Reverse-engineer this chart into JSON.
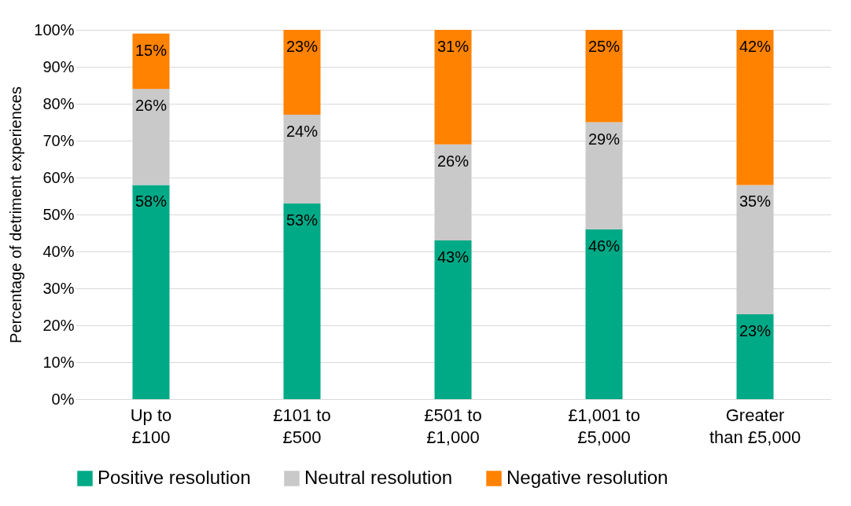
{
  "chart_data": {
    "type": "bar",
    "stacked": true,
    "ylabel": "Percentage of detriment experiences",
    "categories": [
      "Up to £100",
      "£101 to £500",
      "£501 to £1,000",
      "£1,001 to £5,000",
      "Greater than £5,000"
    ],
    "series": [
      {
        "name": "Positive resolution",
        "color": "#00aa86",
        "values": [
          58,
          53,
          43,
          46,
          23
        ],
        "value_labels": [
          "58%",
          "53%",
          "43%",
          "46%",
          "23%"
        ]
      },
      {
        "name": "Neutral resolution",
        "color": "#c9c9c9",
        "values": [
          26,
          24,
          26,
          29,
          35
        ],
        "value_labels": [
          "26%",
          "24%",
          "26%",
          "29%",
          "35%"
        ]
      },
      {
        "name": "Negative resolution",
        "color": "#ff8200",
        "values": [
          15,
          23,
          31,
          25,
          42
        ],
        "value_labels": [
          "15%",
          "23%",
          "31%",
          "25%",
          "42%"
        ]
      }
    ],
    "ylim": [
      0,
      100
    ],
    "yticks": [
      {
        "value": 0,
        "label": "0%"
      },
      {
        "value": 10,
        "label": "10%"
      },
      {
        "value": 20,
        "label": "20%"
      },
      {
        "value": 30,
        "label": "30%"
      },
      {
        "value": 40,
        "label": "40%"
      },
      {
        "value": 50,
        "label": "50%"
      },
      {
        "value": 60,
        "label": "60%"
      },
      {
        "value": 70,
        "label": "70%"
      },
      {
        "value": 80,
        "label": "80%"
      },
      {
        "value": 90,
        "label": "90%"
      },
      {
        "value": 100,
        "label": "100%"
      }
    ],
    "grid": "y",
    "legend": "bottom"
  }
}
